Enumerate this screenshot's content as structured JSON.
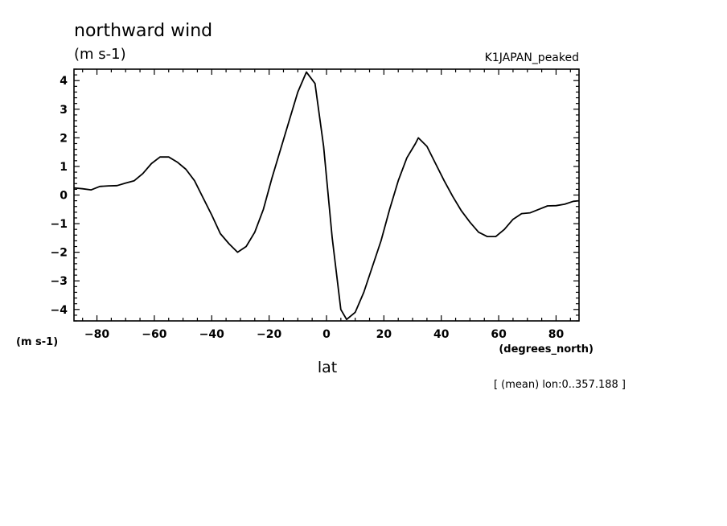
{
  "chart_data": {
    "type": "line",
    "title": "northward wind",
    "subtitle_units": "(m s-1)",
    "run_label": "K1JAPAN_peaked",
    "ylabel_units": "(m s-1)",
    "xlabel_units": "(degrees_north)",
    "xlabel": "lat",
    "note": "[ (mean) lon:0..357.188 ]",
    "xlim": [
      -88,
      88
    ],
    "ylim": [
      -4.4,
      4.4
    ],
    "x_ticks": [
      -80,
      -60,
      -40,
      -20,
      0,
      20,
      40,
      60,
      80
    ],
    "x_tick_labels": [
      "-80",
      "-60",
      "-40",
      "-20",
      "0",
      "20",
      "40",
      "60",
      "80"
    ],
    "y_ticks": [
      -4,
      -3,
      -2,
      -1,
      0,
      1,
      2,
      3,
      4
    ],
    "y_tick_labels": [
      "-4",
      "-3",
      "-2",
      "-1",
      "0",
      "1",
      "2",
      "3",
      "4"
    ],
    "grid": false,
    "line_color": "#000000",
    "series": [
      {
        "x": [
          -88,
          -85,
          -82,
          -79,
          -76,
          -73,
          -70,
          -67,
          -64,
          -61,
          -58,
          -55,
          -52,
          -49,
          -46,
          -43,
          -40,
          -37,
          -34,
          -31,
          -28,
          -25,
          -22,
          -19,
          -16,
          -13,
          -10,
          -7,
          -4,
          -1,
          2,
          5,
          7,
          10,
          13,
          16,
          19,
          22,
          25,
          28,
          31,
          32,
          35,
          38,
          41,
          44,
          47,
          50,
          53,
          56,
          59,
          62,
          65,
          68,
          71,
          74,
          77,
          80,
          83,
          86,
          88
        ],
        "y": [
          0.25,
          0.22,
          0.18,
          0.3,
          0.32,
          0.33,
          0.42,
          0.5,
          0.75,
          1.1,
          1.33,
          1.33,
          1.15,
          0.9,
          0.5,
          -0.1,
          -0.7,
          -1.35,
          -1.7,
          -2.0,
          -1.8,
          -1.3,
          -0.5,
          0.6,
          1.6,
          2.6,
          3.6,
          4.3,
          3.9,
          1.7,
          -1.5,
          -4.0,
          -4.35,
          -4.1,
          -3.4,
          -2.5,
          -1.6,
          -0.5,
          0.5,
          1.3,
          1.8,
          2.0,
          1.7,
          1.1,
          0.5,
          -0.05,
          -0.55,
          -0.95,
          -1.3,
          -1.45,
          -1.45,
          -1.2,
          -0.85,
          -0.65,
          -0.62,
          -0.5,
          -0.38,
          -0.37,
          -0.32,
          -0.22,
          -0.2
        ]
      }
    ]
  }
}
